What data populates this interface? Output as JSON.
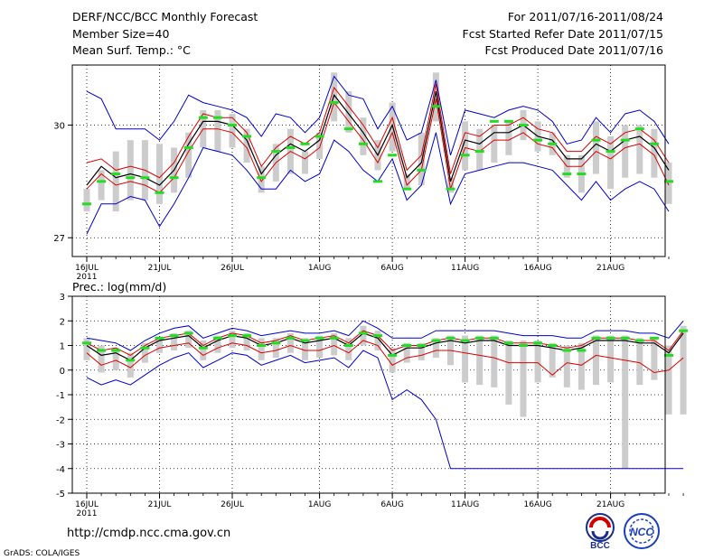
{
  "header": {
    "title": "DERF/NCC/BCC Monthly Forecast",
    "member_size": "Member Size=40",
    "variable": "Mean Surf. Temp.: °C",
    "period": "For 2011/07/16-2011/08/24",
    "started": "Fcst Started Refer Date 2011/07/15",
    "produced": "Fcst Produced Date 2011/07/16"
  },
  "footer": {
    "url": "http://cmdp.ncc.cma.gov.cn",
    "grads": "GrADS: COLA/IGES",
    "logo_left_text": "BCC",
    "logo_right_text": "NCC"
  },
  "colors": {
    "ensemble_mean": "#000000",
    "spread": "#dd0000",
    "envelope": "#0000cc",
    "box": "#cccccc",
    "median": "#22dd22"
  },
  "chart_data": [
    {
      "type": "line",
      "title": "Mean Surf. Temp.: °C",
      "xlabel": "",
      "ylabel": "",
      "ylim": [
        26.5,
        31.6
      ],
      "yticks": [
        27,
        30
      ],
      "grid": true,
      "x_tick_labels": [
        "16JUL",
        "21JUL",
        "26JUL",
        "1AUG",
        "6AUG",
        "11AUG",
        "16AUG",
        "21AUG"
      ],
      "x_tick_days": [
        0,
        5,
        10,
        16,
        21,
        26,
        31,
        36
      ],
      "x_year_label": "2011",
      "mean": [
        28.4,
        28.9,
        28.6,
        28.7,
        28.6,
        28.4,
        28.8,
        29.5,
        30.1,
        30.1,
        30.0,
        29.6,
        28.7,
        29.2,
        29.5,
        29.3,
        29.6,
        30.8,
        30.3,
        29.8,
        29.2,
        30.0,
        28.6,
        29.0,
        30.9,
        28.5,
        29.6,
        29.5,
        29.8,
        29.8,
        30.0,
        29.7,
        29.6,
        29.1,
        29.1,
        29.5,
        29.3,
        29.6,
        29.7,
        29.4,
        28.8
      ],
      "red_upper": [
        29.0,
        29.1,
        28.8,
        28.9,
        28.8,
        28.6,
        29.0,
        29.7,
        30.3,
        30.2,
        30.2,
        29.8,
        28.9,
        29.4,
        29.7,
        29.5,
        29.8,
        31.0,
        30.5,
        30.0,
        29.4,
        30.2,
        28.8,
        29.2,
        31.1,
        28.7,
        29.8,
        29.7,
        30.0,
        30.0,
        30.2,
        29.9,
        29.8,
        29.3,
        29.3,
        29.7,
        29.5,
        29.8,
        29.9,
        29.6,
        29.0
      ],
      "red_lower": [
        28.3,
        28.7,
        28.4,
        28.5,
        28.4,
        28.2,
        28.6,
        29.3,
        29.9,
        29.9,
        29.8,
        29.4,
        28.5,
        29.0,
        29.3,
        29.1,
        29.4,
        30.6,
        30.1,
        29.6,
        29.0,
        29.8,
        28.4,
        28.8,
        30.7,
        28.3,
        29.4,
        29.3,
        29.6,
        29.6,
        29.8,
        29.5,
        29.4,
        28.9,
        28.9,
        29.3,
        29.1,
        29.4,
        29.5,
        29.2,
        28.4
      ],
      "blue_upper": [
        30.9,
        30.7,
        29.9,
        29.9,
        29.9,
        29.6,
        30.1,
        30.8,
        30.6,
        30.5,
        30.4,
        30.2,
        29.7,
        30.3,
        30.2,
        29.8,
        30.2,
        31.3,
        30.8,
        30.7,
        29.9,
        30.5,
        29.6,
        29.8,
        31.2,
        29.2,
        30.4,
        30.3,
        30.2,
        30.4,
        30.5,
        30.4,
        30.1,
        29.5,
        29.6,
        30.2,
        29.8,
        30.3,
        30.4,
        30.1,
        29.5
      ],
      "blue_lower": [
        27.1,
        27.9,
        27.9,
        28.1,
        28.0,
        27.3,
        27.9,
        28.6,
        29.4,
        29.3,
        29.2,
        28.8,
        28.3,
        28.3,
        28.8,
        28.5,
        28.7,
        29.6,
        29.3,
        28.8,
        28.5,
        29.1,
        28.0,
        28.4,
        29.8,
        27.9,
        28.7,
        28.8,
        28.9,
        29.0,
        29.0,
        28.9,
        28.8,
        28.4,
        28.0,
        28.5,
        28.0,
        28.3,
        28.5,
        28.3,
        27.7
      ],
      "box_upper": [
        28.3,
        28.8,
        29.3,
        29.6,
        29.6,
        29.5,
        29.4,
        29.8,
        30.4,
        30.4,
        30.3,
        29.9,
        28.9,
        29.5,
        29.9,
        29.3,
        29.8,
        31.4,
        30.9,
        30.2,
        29.6,
        30.6,
        28.7,
        29.8,
        31.4,
        28.6,
        30.1,
        29.9,
        30.0,
        30.1,
        30.4,
        30.1,
        29.8,
        29.2,
        29.2,
        30.1,
        29.7,
        30.0,
        30.0,
        29.9,
        29.0
      ],
      "box_lower": [
        27.7,
        28.0,
        27.7,
        28.0,
        28.0,
        27.9,
        28.2,
        28.6,
        29.4,
        29.3,
        29.4,
        29.0,
        28.2,
        28.5,
        28.7,
        28.7,
        29.1,
        30.1,
        29.8,
        29.2,
        28.8,
        29.3,
        28.3,
        28.4,
        30.1,
        28.2,
        28.8,
        28.8,
        29.0,
        29.2,
        29.6,
        29.3,
        29.2,
        28.6,
        28.2,
        28.7,
        28.3,
        28.6,
        28.7,
        28.6,
        27.9
      ],
      "median": [
        27.9,
        28.5,
        28.7,
        28.6,
        28.6,
        28.2,
        28.6,
        29.4,
        30.2,
        30.2,
        30.0,
        29.7,
        28.6,
        29.3,
        29.4,
        29.5,
        29.7,
        30.6,
        29.9,
        29.5,
        28.5,
        29.2,
        28.3,
        28.8,
        30.5,
        28.3,
        29.2,
        29.3,
        30.1,
        30.1,
        30.0,
        29.6,
        29.5,
        28.7,
        28.7,
        29.6,
        29.3,
        29.6,
        29.9,
        29.5,
        28.5
      ]
    },
    {
      "type": "line",
      "title": "Prec.: log(mm/d)",
      "xlabel": "",
      "ylabel": "",
      "ylim": [
        -5,
        3
      ],
      "yticks": [
        -5,
        -4,
        -3,
        -2,
        -1,
        0,
        1,
        2,
        3
      ],
      "grid": true,
      "x_tick_labels": [
        "16JUL",
        "21JUL",
        "26JUL",
        "1AUG",
        "6AUG",
        "11AUG",
        "16AUG",
        "21AUG"
      ],
      "x_tick_days": [
        0,
        5,
        10,
        16,
        21,
        26,
        31,
        36
      ],
      "x_year_label": "2011",
      "mean": [
        1.0,
        0.6,
        0.7,
        0.4,
        0.9,
        1.2,
        1.3,
        1.4,
        0.9,
        1.2,
        1.4,
        1.3,
        1.0,
        1.1,
        1.3,
        1.1,
        1.2,
        1.3,
        1.0,
        1.5,
        1.3,
        0.6,
        0.9,
        0.9,
        1.1,
        1.2,
        1.1,
        1.2,
        1.2,
        1.0,
        1.0,
        1.0,
        0.9,
        0.8,
        0.9,
        1.2,
        1.2,
        1.2,
        1.1,
        1.1,
        0.7,
        1.5
      ],
      "red_upper": [
        1.1,
        0.8,
        0.9,
        0.6,
        1.0,
        1.3,
        1.4,
        1.5,
        1.0,
        1.3,
        1.5,
        1.4,
        1.1,
        1.2,
        1.4,
        1.2,
        1.3,
        1.4,
        1.1,
        1.6,
        1.4,
        0.8,
        1.0,
        1.0,
        1.2,
        1.3,
        1.2,
        1.3,
        1.3,
        1.1,
        1.1,
        1.1,
        1.0,
        0.9,
        1.0,
        1.3,
        1.3,
        1.3,
        1.2,
        1.2,
        0.8,
        1.6
      ],
      "red_lower": [
        0.7,
        0.2,
        0.4,
        0.1,
        0.6,
        0.9,
        1.0,
        1.1,
        0.6,
        0.9,
        1.1,
        1.0,
        0.7,
        0.8,
        1.0,
        0.8,
        0.8,
        1.0,
        0.7,
        1.2,
        1.0,
        0.2,
        0.5,
        0.6,
        0.8,
        0.8,
        0.7,
        0.6,
        0.5,
        0.3,
        0.3,
        0.3,
        -0.2,
        0.3,
        0.2,
        0.6,
        0.5,
        0.4,
        0.3,
        -0.1,
        0.0,
        0.5
      ],
      "blue_upper": [
        1.3,
        1.2,
        1.1,
        0.8,
        1.2,
        1.5,
        1.7,
        1.8,
        1.3,
        1.5,
        1.7,
        1.6,
        1.4,
        1.5,
        1.6,
        1.5,
        1.5,
        1.6,
        1.4,
        2.0,
        1.7,
        1.3,
        1.3,
        1.3,
        1.6,
        1.6,
        1.6,
        1.6,
        1.6,
        1.5,
        1.4,
        1.4,
        1.4,
        1.3,
        1.3,
        1.6,
        1.6,
        1.6,
        1.5,
        1.5,
        1.3,
        2.0
      ],
      "blue_lower": [
        -0.3,
        -0.6,
        -0.4,
        -0.6,
        -0.2,
        0.2,
        0.5,
        0.7,
        0.1,
        0.4,
        0.7,
        0.6,
        0.2,
        0.4,
        0.6,
        0.3,
        0.4,
        0.5,
        0.1,
        0.8,
        0.5,
        -1.2,
        -0.8,
        -1.2,
        -2.0,
        -4.0,
        -4.0,
        -4.0,
        -4.0,
        -4.0,
        -4.0,
        -4.0,
        -4.0,
        -4.0,
        -4.0,
        -4.0,
        -4.0,
        -4.0,
        -4.0,
        -4.0,
        -4.0,
        -4.0
      ],
      "box_upper": [
        1.3,
        1.0,
        0.9,
        0.7,
        1.1,
        1.3,
        1.5,
        1.6,
        1.2,
        1.4,
        1.6,
        1.5,
        1.3,
        1.3,
        1.5,
        1.3,
        1.4,
        1.5,
        1.3,
        1.8,
        1.6,
        0.9,
        1.1,
        1.1,
        1.3,
        1.4,
        1.4,
        1.4,
        1.4,
        1.2,
        1.2,
        1.2,
        1.1,
        1.0,
        1.1,
        1.4,
        1.4,
        1.4,
        1.3,
        1.3,
        1.0,
        1.8
      ],
      "box_lower": [
        0.4,
        -0.1,
        0.0,
        -0.3,
        0.3,
        0.7,
        0.8,
        0.9,
        0.4,
        0.7,
        0.9,
        0.8,
        0.4,
        0.5,
        0.7,
        0.4,
        0.5,
        0.6,
        0.4,
        1.0,
        0.8,
        -0.1,
        0.3,
        0.4,
        0.5,
        0.2,
        -0.5,
        -0.6,
        -0.7,
        -1.4,
        -1.9,
        -0.5,
        -0.3,
        -0.7,
        -0.8,
        -0.6,
        -0.5,
        -4.0,
        -0.6,
        -0.4,
        -1.8,
        -1.8
      ],
      "median": [
        1.1,
        0.8,
        0.8,
        0.4,
        0.9,
        1.3,
        1.4,
        1.5,
        0.9,
        1.3,
        1.4,
        1.4,
        1.0,
        1.1,
        1.3,
        1.2,
        1.3,
        1.3,
        1.0,
        1.5,
        1.4,
        0.6,
        1.0,
        1.0,
        1.2,
        1.3,
        1.2,
        1.3,
        1.3,
        1.1,
        1.0,
        1.1,
        1.0,
        0.8,
        0.8,
        1.3,
        1.3,
        1.3,
        1.2,
        1.3,
        0.6,
        1.6
      ]
    }
  ]
}
